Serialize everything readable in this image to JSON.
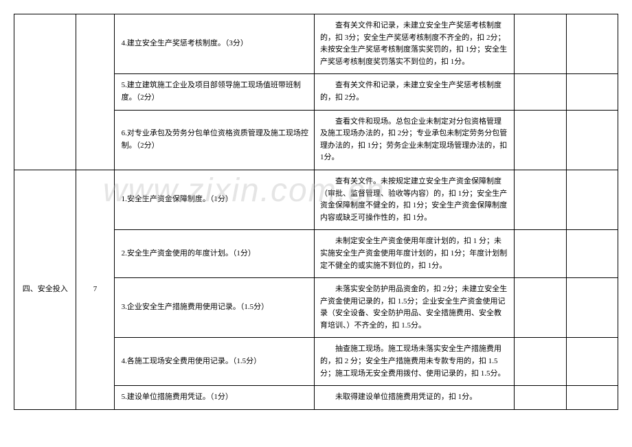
{
  "table": {
    "section1": {
      "rows": [
        {
          "item": "4.建立安全生产奖惩考核制度。（3分）",
          "criteria": "查有关文件和记录，未建立安全生产奖惩考核制度的，扣 3分；安全生产奖惩考核制度不齐全的，扣 2分；未按安全生产奖惩考核制度落实奖罚的，扣 1分；安全生产奖惩考核制度奖罚落实不到位的，扣 1分。"
        },
        {
          "item": "5.建立建筑施工企业及项目部领导施工现场值班带班制度。（2分）",
          "criteria": "查有关文件和记录，未建立安全生产奖惩考核制度的，扣 2分。"
        },
        {
          "item": "6.对专业承包及劳务分包单位资格资质管理及施工现场控制。（2分）",
          "criteria": "查看文件和现场。总包企业未制定对分包资格管理及施工现场办法的，扣 2分；专业承包未制定劳务分包管理办法的，扣 1分；劳务企业未制定现场管理办法的，扣 1分。"
        }
      ]
    },
    "section2": {
      "category": "四、安全投入",
      "score": "7",
      "rows": [
        {
          "item": "1.安全生产资金保障制度。（1分）",
          "criteria": "查有关文件。未按规定建立安全生产资金保障制度（审批、监督管理、验收等内容）的，扣 1分；安全生产资金保障制度不健全的，扣 1分；安全生产资金保障制度内容或缺乏可操作性的，扣 1分。"
        },
        {
          "item": "2.安全生产资金使用的年度计划。（1分）",
          "criteria": "未制定安全生产资金使用年度计划的，扣 1 分；未实施安全生产资金使用年度计划的，扣 1分；年度计划制定不健全的或实施不到位的，扣 1分。"
        },
        {
          "item": "3.企业安全生产措施费用使用记录。（1.5分）",
          "criteria": "未落实安全防护用品资金的，扣 2分；未建立安全生产资金使用记录的，扣 1.5分；企业安全生产资金使用记录（安全设备、安全防护用品、安全措施费用、安全教育培训、）不齐全的，扣 1.5分。"
        },
        {
          "item": "4.各施工现场安全费用使用记录。（1.5分）",
          "criteria": "抽查施工现场。施工现场未落实安全生产措施费用的，扣 2 分；安全生产措施费用未专款专用的，扣 1.5分；施工现场无安全费用拨付、使用记录的，扣 1.5分。"
        },
        {
          "item": "5.建设单位措施费用凭证。（1分）",
          "criteria": "未取得建设单位措施费用凭证的，扣 1分。"
        }
      ]
    }
  },
  "watermark": "www.zixin.com.cn"
}
